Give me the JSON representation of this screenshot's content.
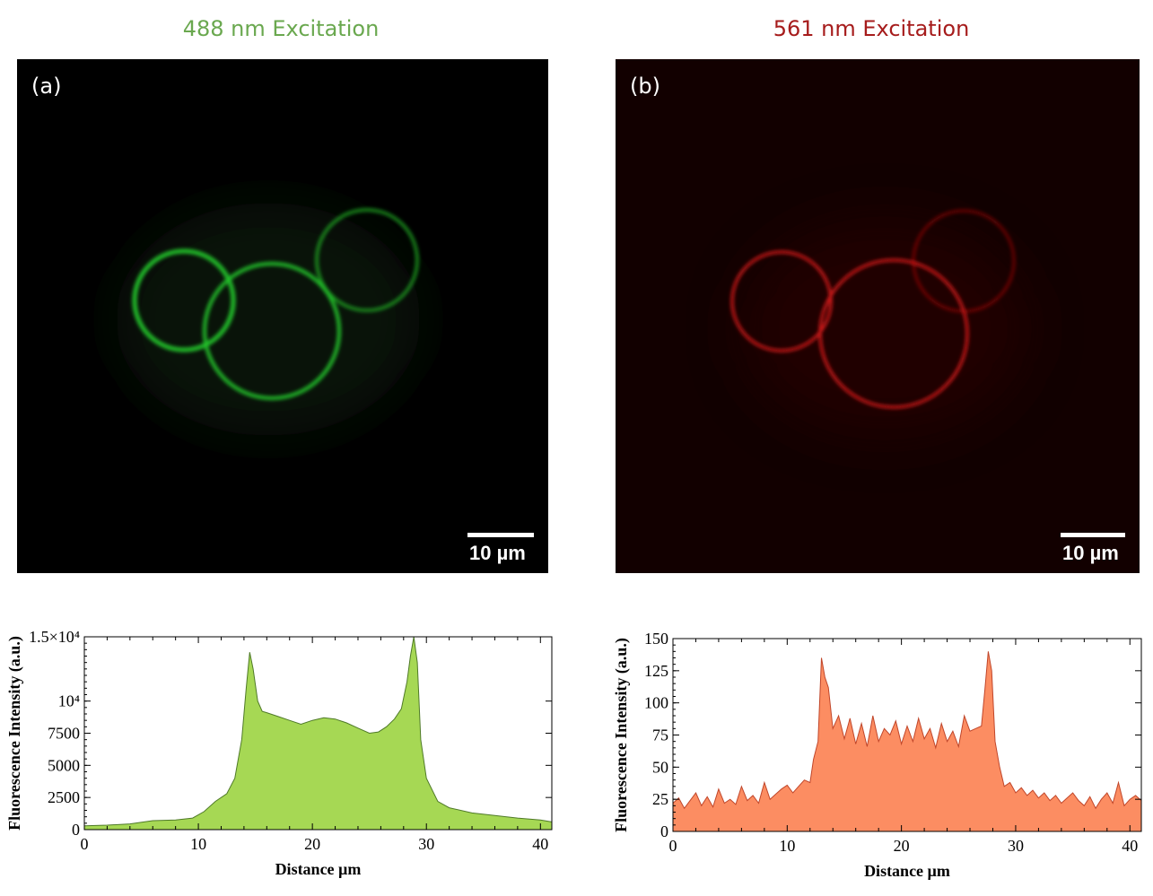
{
  "panels": [
    {
      "label": "(a)",
      "title": "488 nm Excitation",
      "title_color": "#6aa84f",
      "scalebar": "10 µm",
      "ring_color": "#22c22a"
    },
    {
      "label": "(b)",
      "title": "561 nm Excitation",
      "title_color": "#a61c1c",
      "scalebar": "10 µm",
      "ring_color": "#e01a1a"
    }
  ],
  "chart_data": [
    {
      "type": "area",
      "xlabel": "Distance µm",
      "ylabel": "Fluorescence Intensity (a.u.)",
      "xlim": [
        0,
        41
      ],
      "ylim": [
        0,
        15000
      ],
      "xticks": [
        0,
        10,
        20,
        30,
        40
      ],
      "yticks": [
        {
          "value": 0,
          "label": "0"
        },
        {
          "value": 2500,
          "label": "2500"
        },
        {
          "value": 5000,
          "label": "5000"
        },
        {
          "value": 7500,
          "label": "7500"
        },
        {
          "value": 10000,
          "label": "10⁴"
        },
        {
          "value": 15000,
          "label": "1.5×10⁴"
        }
      ],
      "fill": "#a6d854",
      "stroke": "#4f7a28",
      "x": [
        0,
        2,
        4,
        6,
        8,
        9.5,
        10.5,
        11.5,
        12.5,
        13.2,
        13.8,
        14.2,
        14.5,
        14.8,
        15.2,
        15.6,
        16,
        17,
        18,
        19,
        20,
        21,
        22,
        23,
        24,
        25,
        25.8,
        26.5,
        27.2,
        27.8,
        28.3,
        28.6,
        28.9,
        29.2,
        29.5,
        30,
        31,
        32,
        34,
        36,
        38,
        40,
        41
      ],
      "y": [
        300,
        350,
        450,
        700,
        750,
        900,
        1400,
        2200,
        2800,
        4000,
        7000,
        11000,
        13800,
        12500,
        10000,
        9200,
        9100,
        8800,
        8500,
        8200,
        8500,
        8700,
        8600,
        8300,
        7900,
        7500,
        7600,
        8000,
        8600,
        9400,
        11500,
        13500,
        15000,
        13000,
        7000,
        4000,
        2200,
        1700,
        1300,
        1100,
        900,
        750,
        600
      ]
    },
    {
      "type": "area",
      "xlabel": "Distance µm",
      "ylabel": "Fluorescence Intensity (a.u.)",
      "xlim": [
        0,
        41
      ],
      "ylim": [
        0,
        150
      ],
      "xticks": [
        0,
        10,
        20,
        30,
        40
      ],
      "yticks": [
        {
          "value": 0,
          "label": "0"
        },
        {
          "value": 25,
          "label": "25"
        },
        {
          "value": 50,
          "label": "50"
        },
        {
          "value": 75,
          "label": "75"
        },
        {
          "value": 100,
          "label": "100"
        },
        {
          "value": 125,
          "label": "125"
        },
        {
          "value": 150,
          "label": "150"
        }
      ],
      "fill": "#fc8d62",
      "stroke": "#c0462a",
      "x": [
        0,
        0.5,
        1,
        1.5,
        2,
        2.5,
        3,
        3.5,
        4,
        4.5,
        5,
        5.5,
        6,
        6.5,
        7,
        7.5,
        8,
        8.5,
        9,
        9.5,
        10,
        10.5,
        11,
        11.5,
        12,
        12.3,
        12.7,
        13,
        13.3,
        13.6,
        14,
        14.5,
        15,
        15.5,
        16,
        16.5,
        17,
        17.5,
        18,
        18.5,
        19,
        19.5,
        20,
        20.5,
        21,
        21.5,
        22,
        22.5,
        23,
        23.5,
        24,
        24.5,
        25,
        25.5,
        26,
        26.5,
        27,
        27.3,
        27.6,
        27.9,
        28.2,
        28.6,
        29,
        29.5,
        30,
        30.5,
        31,
        31.5,
        32,
        32.5,
        33,
        33.5,
        34,
        34.5,
        35,
        35.5,
        36,
        36.5,
        37,
        37.5,
        38,
        38.5,
        39,
        39.5,
        40,
        40.5,
        41
      ],
      "y": [
        22,
        26,
        18,
        24,
        30,
        20,
        27,
        19,
        33,
        22,
        25,
        21,
        35,
        24,
        28,
        22,
        38,
        25,
        29,
        33,
        36,
        30,
        35,
        40,
        38,
        56,
        70,
        135,
        120,
        112,
        80,
        90,
        72,
        88,
        68,
        84,
        66,
        90,
        70,
        80,
        75,
        86,
        68,
        82,
        70,
        88,
        72,
        80,
        65,
        84,
        70,
        78,
        66,
        90,
        78,
        80,
        82,
        110,
        140,
        125,
        70,
        50,
        35,
        38,
        30,
        34,
        28,
        32,
        26,
        30,
        24,
        28,
        22,
        26,
        30,
        24,
        20,
        27,
        18,
        25,
        30,
        22,
        38,
        20,
        25,
        28,
        24
      ]
    }
  ]
}
